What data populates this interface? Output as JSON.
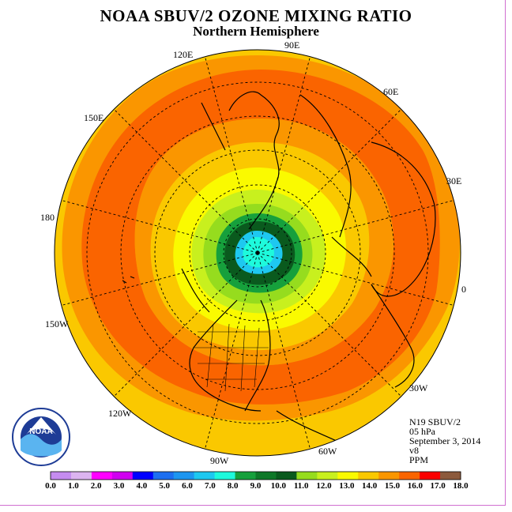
{
  "title": "NOAA SBUV/2 OZONE MIXING RATIO",
  "subtitle": "Northern Hemisphere",
  "longitude_labels": [
    "90E",
    "60E",
    "30E",
    "0",
    "30W",
    "60W",
    "90W",
    "120W",
    "150W",
    "180",
    "150E",
    "120E"
  ],
  "info": {
    "instrument": "N19 SBUV/2",
    "pressure": "05 hPa",
    "date": "September 3, 2014",
    "version": "v8",
    "units": "PPM"
  },
  "colorbar": {
    "labels": [
      "0.0",
      "1.0",
      "2.0",
      "3.0",
      "4.0",
      "5.0",
      "6.0",
      "7.0",
      "8.0",
      "9.0",
      "10.0",
      "11.0",
      "12.0",
      "13.0",
      "14.0",
      "15.0",
      "16.0",
      "17.0",
      "18.0"
    ],
    "colors": [
      "#c58cf0",
      "#dcb4f0",
      "#ff00ff",
      "#d000f0",
      "#0000ff",
      "#1e6ff0",
      "#1e96f0",
      "#1ec8f0",
      "#1efadc",
      "#16a03c",
      "#0e7828",
      "#0a5a1e",
      "#96dc1e",
      "#c8f01e",
      "#fafa00",
      "#fac800",
      "#fa9600",
      "#fa6400",
      "#fa0000",
      "#8c5a3c"
    ]
  },
  "logo_text": "NOAA",
  "logo_ring_text": "NATIONAL OCEANIC AND ATMOSPHERIC ADMINISTRATION · U.S. DEPARTMENT OF COMMERCE"
}
